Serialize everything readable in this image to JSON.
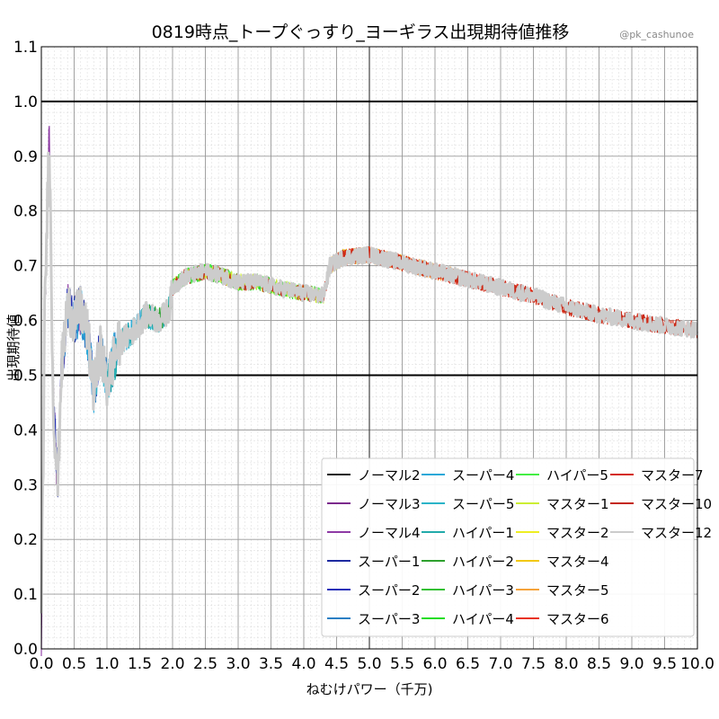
{
  "chart_data": {
    "type": "line",
    "title": "0819時点_トープぐっすり_ヨーギラス出現期待値推移",
    "credit": "@pk_cashunoe",
    "xlabel": "ねむけパワー（千万)",
    "ylabel": "出現期待値",
    "xlim": [
      0.0,
      10.0
    ],
    "ylim": [
      0.0,
      1.1
    ],
    "x_ticks": [
      "0.0",
      "0.5",
      "1.0",
      "1.5",
      "2.0",
      "2.5",
      "3.0",
      "3.5",
      "4.0",
      "4.5",
      "5.0",
      "5.5",
      "6.0",
      "6.5",
      "7.0",
      "7.5",
      "8.0",
      "8.5",
      "9.0",
      "9.5",
      "10.0"
    ],
    "y_ticks": [
      "0.0",
      "0.1",
      "0.2",
      "0.3",
      "0.4",
      "0.5",
      "0.6",
      "0.7",
      "0.8",
      "0.9",
      "1.0",
      "1.1"
    ],
    "grid": true,
    "reference_lines": [
      0.5,
      1.0
    ],
    "legend_position": "bottom-right",
    "series": [
      {
        "name": "ノーマル2",
        "color": "#1a1a1a",
        "x_range": [
          0.0,
          0.1
        ]
      },
      {
        "name": "ノーマル3",
        "color": "#7b2a8c",
        "x_range": [
          0.0,
          0.3
        ]
      },
      {
        "name": "ノーマル4",
        "color": "#8e3aa5",
        "x_range": [
          0.0,
          0.6
        ]
      },
      {
        "name": "スーパー1",
        "color": "#1d2aa0",
        "x_range": [
          0.1,
          0.7
        ]
      },
      {
        "name": "スーパー2",
        "color": "#2430b8",
        "x_range": [
          0.2,
          0.9
        ]
      },
      {
        "name": "スーパー3",
        "color": "#2b7fc4",
        "x_range": [
          0.3,
          1.2
        ]
      },
      {
        "name": "スーパー4",
        "color": "#29a8d8",
        "x_range": [
          0.5,
          1.6
        ]
      },
      {
        "name": "スーパー5",
        "color": "#2bb4c8",
        "x_range": [
          0.8,
          1.8
        ]
      },
      {
        "name": "ハイパー1",
        "color": "#22aaaa",
        "x_range": [
          1.0,
          2.0
        ]
      },
      {
        "name": "ハイパー2",
        "color": "#2ea02e",
        "x_range": [
          1.6,
          3.0
        ]
      },
      {
        "name": "ハイパー3",
        "color": "#33c033",
        "x_range": [
          2.0,
          3.6
        ]
      },
      {
        "name": "ハイパー4",
        "color": "#22dd22",
        "x_range": [
          2.0,
          4.0
        ]
      },
      {
        "name": "ハイパー5",
        "color": "#44ee44",
        "x_range": [
          2.0,
          4.3
        ]
      },
      {
        "name": "マスター1",
        "color": "#ccee33",
        "x_range": [
          2.0,
          4.3
        ]
      },
      {
        "name": "マスター2",
        "color": "#eeee22",
        "x_range": [
          4.4,
          5.5
        ]
      },
      {
        "name": "マスター4",
        "color": "#f2c811",
        "x_range": [
          4.4,
          6.0
        ]
      },
      {
        "name": "マスター5",
        "color": "#f5a33a",
        "x_range": [
          4.4,
          6.5
        ]
      },
      {
        "name": "マスター6",
        "color": "#e8321e",
        "x_range": [
          4.4,
          7.5
        ]
      },
      {
        "name": "マスター7",
        "color": "#d42a14",
        "x_range": [
          4.4,
          10.0
        ]
      },
      {
        "name": "マスター10",
        "color": "#c42818",
        "x_range": [
          2.0,
          10.0
        ]
      },
      {
        "name": "マスター12",
        "color": "#cccccc",
        "x_range": [
          0.0,
          10.0
        ]
      }
    ],
    "trend_points": [
      [
        0.0,
        0.03
      ],
      [
        0.05,
        0.6
      ],
      [
        0.12,
        0.95
      ],
      [
        0.18,
        0.45
      ],
      [
        0.25,
        0.3
      ],
      [
        0.3,
        0.5
      ],
      [
        0.4,
        0.63
      ],
      [
        0.5,
        0.6
      ],
      [
        0.6,
        0.62
      ],
      [
        0.7,
        0.58
      ],
      [
        0.8,
        0.47
      ],
      [
        0.9,
        0.55
      ],
      [
        1.0,
        0.48
      ],
      [
        1.1,
        0.53
      ],
      [
        1.2,
        0.56
      ],
      [
        1.4,
        0.58
      ],
      [
        1.6,
        0.61
      ],
      [
        1.8,
        0.6
      ],
      [
        1.95,
        0.62
      ],
      [
        2.0,
        0.66
      ],
      [
        2.2,
        0.68
      ],
      [
        2.5,
        0.69
      ],
      [
        2.8,
        0.68
      ],
      [
        3.0,
        0.67
      ],
      [
        3.3,
        0.67
      ],
      [
        3.6,
        0.66
      ],
      [
        4.0,
        0.65
      ],
      [
        4.3,
        0.645
      ],
      [
        4.4,
        0.7
      ],
      [
        4.6,
        0.715
      ],
      [
        5.0,
        0.72
      ],
      [
        5.5,
        0.705
      ],
      [
        6.0,
        0.69
      ],
      [
        6.5,
        0.675
      ],
      [
        7.0,
        0.66
      ],
      [
        7.5,
        0.645
      ],
      [
        8.0,
        0.625
      ],
      [
        8.5,
        0.61
      ],
      [
        9.0,
        0.6
      ],
      [
        9.5,
        0.59
      ],
      [
        10.0,
        0.583
      ]
    ],
    "noise_amplitude": 0.015
  }
}
